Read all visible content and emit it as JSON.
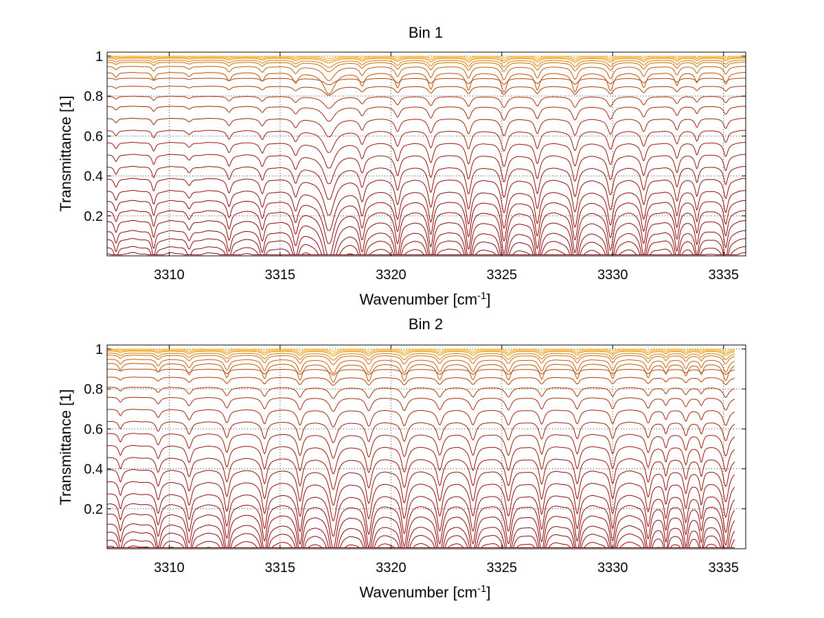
{
  "figure": {
    "background": "#ffffff",
    "line_colors": {
      "dark": "#8B0000",
      "light": "#FFB000"
    },
    "grid_color": "#333333"
  },
  "chart_data": [
    {
      "type": "line",
      "title": "Bin 1",
      "xlabel_prefix": "Wavenumber [cm",
      "xlabel_superscript": "-1",
      "xlabel_suffix": "]",
      "ylabel": "Transmittance [1]",
      "xlim": [
        3307.2,
        3336.0
      ],
      "ylim": [
        0.0,
        1.02
      ],
      "xticks": [
        3310,
        3315,
        3320,
        3325,
        3330,
        3335
      ],
      "yticks": [
        0.2,
        0.4,
        0.6,
        0.8,
        1
      ],
      "ytick_labels": [
        "0.2",
        "0.4",
        "0.6",
        "0.8",
        "1"
      ],
      "grid": true,
      "x_range": [
        3307.2,
        3336.0
      ],
      "series_offsets": [
        0.02,
        0.05,
        0.09,
        0.13,
        0.18,
        0.23,
        0.28,
        0.33,
        0.39,
        0.45,
        0.51,
        0.57,
        0.63,
        0.69,
        0.75,
        0.8,
        0.85,
        0.89,
        0.92,
        0.95,
        0.97,
        0.98,
        0.99,
        0.995,
        1.0
      ],
      "absorption_lines": [
        {
          "x": 3307.6,
          "depth": 0.25,
          "width": 0.1
        },
        {
          "x": 3309.3,
          "depth": 0.35,
          "width": 0.1
        },
        {
          "x": 3310.9,
          "depth": 0.2,
          "width": 0.12
        },
        {
          "x": 3312.7,
          "depth": 0.4,
          "width": 0.12
        },
        {
          "x": 3314.2,
          "depth": 0.4,
          "width": 0.12
        },
        {
          "x": 3315.7,
          "depth": 0.45,
          "width": 0.14
        },
        {
          "x": 3317.2,
          "depth": 1.0,
          "width": 0.3
        },
        {
          "x": 3318.7,
          "depth": 0.6,
          "width": 0.14
        },
        {
          "x": 3320.3,
          "depth": 0.7,
          "width": 0.14
        },
        {
          "x": 3321.8,
          "depth": 0.75,
          "width": 0.14
        },
        {
          "x": 3323.5,
          "depth": 0.8,
          "width": 0.14
        },
        {
          "x": 3325.1,
          "depth": 0.9,
          "width": 0.16
        },
        {
          "x": 3326.6,
          "depth": 0.8,
          "width": 0.14
        },
        {
          "x": 3328.3,
          "depth": 0.9,
          "width": 0.16
        },
        {
          "x": 3329.9,
          "depth": 0.85,
          "width": 0.16
        },
        {
          "x": 3331.4,
          "depth": 0.7,
          "width": 0.14
        },
        {
          "x": 3332.9,
          "depth": 0.6,
          "width": 0.12
        },
        {
          "x": 3333.8,
          "depth": 0.45,
          "width": 0.1
        },
        {
          "x": 3335.1,
          "depth": 0.55,
          "width": 0.12
        }
      ]
    },
    {
      "type": "line",
      "title": "Bin 2",
      "xlabel_prefix": "Wavenumber [cm",
      "xlabel_superscript": "-1",
      "xlabel_suffix": "]",
      "ylabel": "Transmittance [1]",
      "xlim": [
        3307.2,
        3336.0
      ],
      "ylim": [
        0.0,
        1.02
      ],
      "xticks": [
        3310,
        3315,
        3320,
        3325,
        3330,
        3335
      ],
      "yticks": [
        0.2,
        0.4,
        0.6,
        0.8,
        1
      ],
      "ytick_labels": [
        "0.2",
        "0.4",
        "0.6",
        "0.8",
        "1"
      ],
      "grid": true,
      "x_range": [
        3307.2,
        3335.5
      ],
      "series_offsets": [
        0.0,
        0.02,
        0.05,
        0.09,
        0.13,
        0.18,
        0.23,
        0.28,
        0.34,
        0.4,
        0.46,
        0.52,
        0.58,
        0.64,
        0.7,
        0.76,
        0.81,
        0.86,
        0.9,
        0.93,
        0.95,
        0.97,
        0.98,
        0.99,
        0.995,
        1.0
      ],
      "absorption_lines": [
        {
          "x": 3307.8,
          "depth": 0.35,
          "width": 0.1
        },
        {
          "x": 3309.5,
          "depth": 0.45,
          "width": 0.12
        },
        {
          "x": 3310.9,
          "depth": 0.6,
          "width": 0.14
        },
        {
          "x": 3312.6,
          "depth": 0.75,
          "width": 0.14
        },
        {
          "x": 3314.3,
          "depth": 0.8,
          "width": 0.14
        },
        {
          "x": 3315.9,
          "depth": 0.85,
          "width": 0.14
        },
        {
          "x": 3317.4,
          "depth": 0.95,
          "width": 0.2
        },
        {
          "x": 3319.0,
          "depth": 0.9,
          "width": 0.16
        },
        {
          "x": 3320.6,
          "depth": 0.9,
          "width": 0.16
        },
        {
          "x": 3322.2,
          "depth": 0.85,
          "width": 0.16
        },
        {
          "x": 3323.7,
          "depth": 0.85,
          "width": 0.16
        },
        {
          "x": 3325.3,
          "depth": 0.85,
          "width": 0.16
        },
        {
          "x": 3326.8,
          "depth": 0.8,
          "width": 0.14
        },
        {
          "x": 3328.4,
          "depth": 0.8,
          "width": 0.14
        },
        {
          "x": 3330.0,
          "depth": 0.8,
          "width": 0.14
        },
        {
          "x": 3331.6,
          "depth": 0.75,
          "width": 0.14
        },
        {
          "x": 3332.4,
          "depth": 0.55,
          "width": 0.1
        },
        {
          "x": 3333.3,
          "depth": 0.65,
          "width": 0.12
        },
        {
          "x": 3334.0,
          "depth": 0.55,
          "width": 0.1
        },
        {
          "x": 3335.1,
          "depth": 0.9,
          "width": 0.16
        }
      ]
    }
  ]
}
